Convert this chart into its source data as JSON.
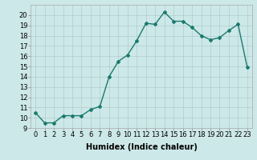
{
  "x": [
    0,
    1,
    2,
    3,
    4,
    5,
    6,
    7,
    8,
    9,
    10,
    11,
    12,
    13,
    14,
    15,
    16,
    17,
    18,
    19,
    20,
    21,
    22,
    23
  ],
  "y": [
    10.5,
    9.5,
    9.5,
    10.2,
    10.2,
    10.2,
    10.8,
    11.1,
    14.0,
    15.5,
    16.1,
    17.5,
    19.2,
    19.1,
    20.3,
    19.4,
    19.4,
    18.8,
    18.0,
    17.6,
    17.8,
    18.5,
    19.1,
    14.9
  ],
  "line_color": "#1a7a6e",
  "marker": "D",
  "marker_size": 2.0,
  "linewidth": 1.0,
  "xlabel": "Humidex (Indice chaleur)",
  "ylim": [
    9,
    21
  ],
  "xlim": [
    -0.5,
    23.5
  ],
  "yticks": [
    9,
    10,
    11,
    12,
    13,
    14,
    15,
    16,
    17,
    18,
    19,
    20
  ],
  "xticks": [
    0,
    1,
    2,
    3,
    4,
    5,
    6,
    7,
    8,
    9,
    10,
    11,
    12,
    13,
    14,
    15,
    16,
    17,
    18,
    19,
    20,
    21,
    22,
    23
  ],
  "bg_color": "#cde8e8",
  "grid_color": "#b0cccc",
  "font_color": "#000000",
  "xlabel_fontsize": 7,
  "tick_fontsize": 6
}
